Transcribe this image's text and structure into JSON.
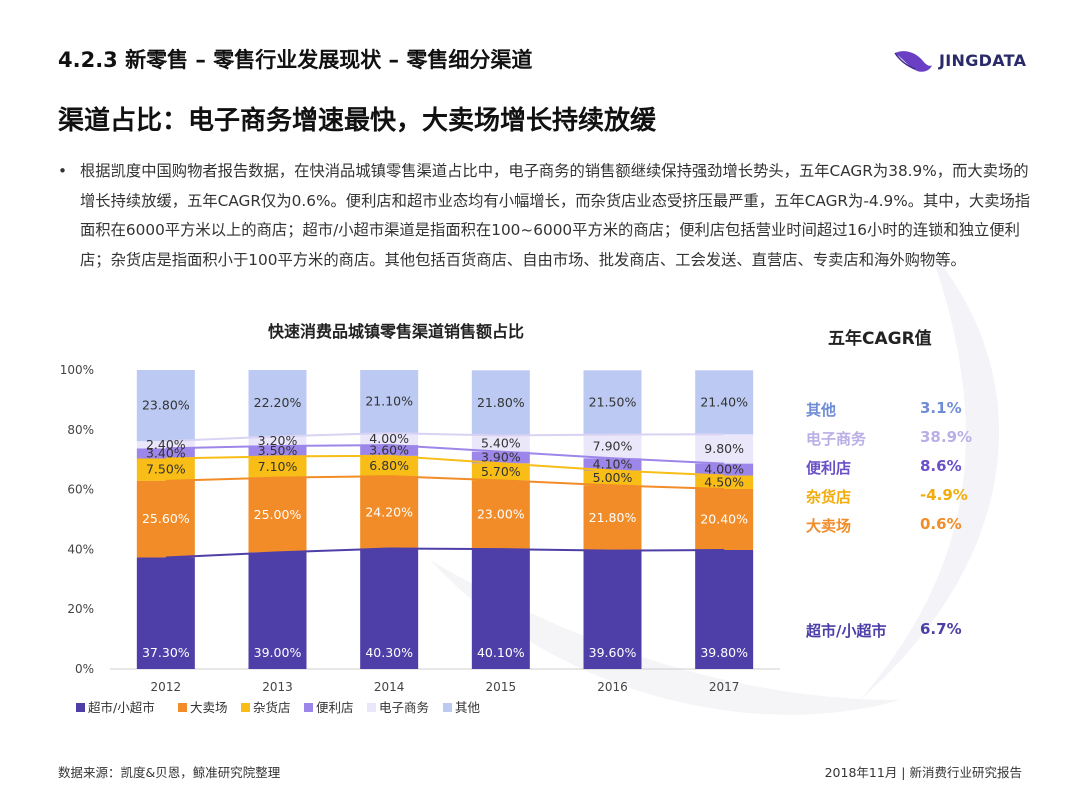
{
  "header": {
    "section_title": "4.2.3 新零售 – 零售行业发展现状 – 零售细分渠道",
    "logo_text": "JINGDATA"
  },
  "headline": "渠道占比：电子商务增速最快，大卖场增长持续放缓",
  "bullet": {
    "marker": "•",
    "text": "根据凯度中国购物者报告数据，在快消品城镇零售渠道占比中，电子商务的销售额继续保持强劲增长势头，五年CAGR为38.9%，而大卖场的增长持续放缓，五年CAGR仅为0.6%。便利店和超市业态均有小幅增长，而杂货店业态受挤压最严重，五年CAGR为-4.9%。其中，大卖场指面积在6000平方米以上的商店；超市/小超市渠道是指面积在100~6000平方米的商店；便利店包括营业时间超过16小时的连锁和独立便利店；杂货店是指面积小于100平方米的商店。其他包括百货商店、自由市场、批发商店、工会发送、直营店、专卖店和海外购物等。"
  },
  "cagr": {
    "title": "五年CAGR值",
    "items": [
      {
        "name": "其他",
        "value": "3.1%",
        "color": "#6f8cd6"
      },
      {
        "name": "电子商务",
        "value": "38.9%",
        "color": "#b9aee6"
      },
      {
        "name": "便利店",
        "value": "8.6%",
        "color": "#6a4fc9"
      },
      {
        "name": "杂货店",
        "value": "-4.9%",
        "color": "#f2ac0e"
      },
      {
        "name": "大卖场",
        "value": "0.6%",
        "color": "#f28c28"
      },
      {
        "name": "超市/小超市",
        "value": "6.7%",
        "color": "#4b3ea7"
      }
    ]
  },
  "chart_data": {
    "type": "bar",
    "stacked": true,
    "title": "快速消费品城镇零售渠道销售额占比",
    "categories": [
      "2012",
      "2013",
      "2014",
      "2015",
      "2016",
      "2017"
    ],
    "series": [
      {
        "name": "超市/小超市",
        "color": "#4e3fa8",
        "values": [
          37.3,
          39.0,
          40.3,
          40.1,
          39.6,
          39.8
        ],
        "labels": [
          "37.30%",
          "39.00%",
          "40.30%",
          "40.10%",
          "39.60%",
          "39.80%"
        ]
      },
      {
        "name": "大卖场",
        "color": "#f28c28",
        "values": [
          25.6,
          25.0,
          24.2,
          23.0,
          21.8,
          20.4
        ],
        "labels": [
          "25.60%",
          "25.00%",
          "24.20%",
          "23.00%",
          "21.80%",
          "20.40%"
        ]
      },
      {
        "name": "杂货店",
        "color": "#f8bd16",
        "values": [
          7.5,
          7.1,
          6.8,
          5.7,
          5.0,
          4.5
        ],
        "labels": [
          "7.50%",
          "7.10%",
          "6.80%",
          "5.70%",
          "5.00%",
          "4.50%"
        ]
      },
      {
        "name": "便利店",
        "color": "#9d86e9",
        "values": [
          3.4,
          3.5,
          3.6,
          3.9,
          4.1,
          4.0
        ],
        "labels": [
          "3.40%",
          "3.50%",
          "3.60%",
          "3.90%",
          "4.10%",
          "4.00%"
        ]
      },
      {
        "name": "电子商务",
        "color": "#ebe7fa",
        "values": [
          2.4,
          3.2,
          4.0,
          5.4,
          7.9,
          9.8
        ],
        "labels": [
          "2.40%",
          "3.20%",
          "4.00%",
          "5.40%",
          "7.90%",
          "9.80%"
        ]
      },
      {
        "name": "其他",
        "color": "#bccaf3",
        "values": [
          23.8,
          22.2,
          21.1,
          21.8,
          21.5,
          21.4
        ],
        "labels": [
          "23.80%",
          "22.20%",
          "21.10%",
          "21.80%",
          "21.50%",
          "21.40%"
        ]
      }
    ],
    "ylim": [
      0,
      100
    ],
    "yticks": [
      "0%",
      "20%",
      "40%",
      "60%",
      "80%",
      "100%"
    ],
    "xlabel": "",
    "ylabel": "",
    "legend_position": "bottom",
    "legend": [
      "超市/小超市",
      "大卖场",
      "杂货店",
      "便利店",
      "电子商务",
      "其他"
    ]
  },
  "footer": {
    "source": "数据来源：凯度&贝恩，鲸准研究院整理",
    "report": "2018年11月 | 新消费行业研究报告"
  }
}
